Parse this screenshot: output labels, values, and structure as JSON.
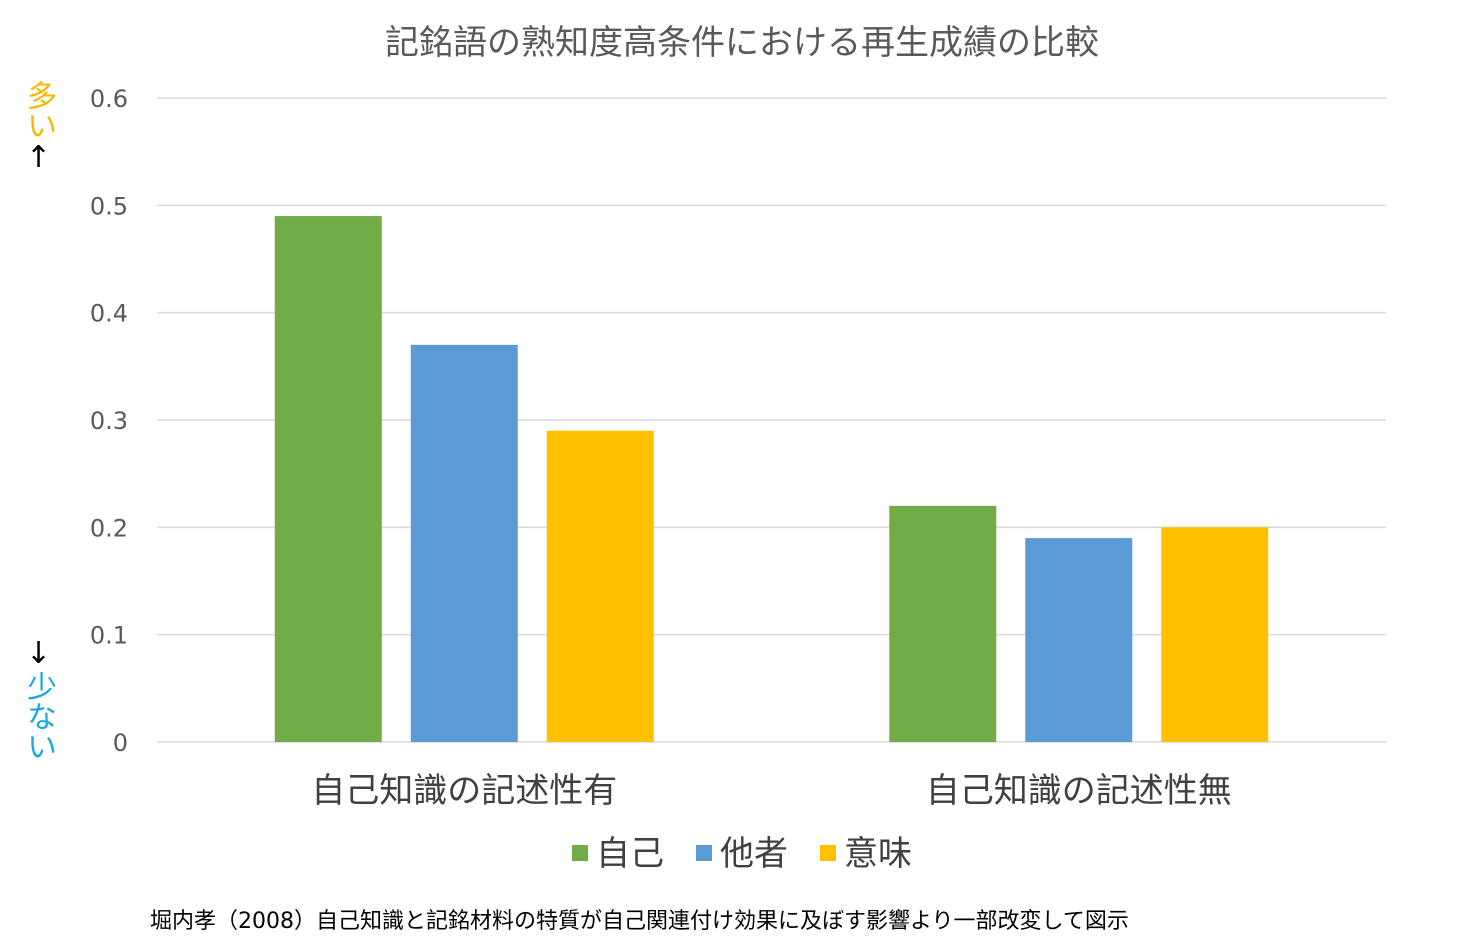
{
  "chart_data": {
    "type": "bar",
    "title": "記銘語の熟知度高条件における再生成績の比較",
    "categories": [
      "自己知識の記述性有",
      "自己知識の記述性無"
    ],
    "series": [
      {
        "name": "自己",
        "values": [
          0.49,
          0.22
        ],
        "color": "#70AD47"
      },
      {
        "name": "他者",
        "values": [
          0.37,
          0.19
        ],
        "color": "#5B9BD5"
      },
      {
        "name": "意味",
        "values": [
          0.29,
          0.2
        ],
        "color": "#FFC000"
      }
    ],
    "ylim": [
      0,
      0.6
    ],
    "yticks": [
      "0",
      "0.1",
      "0.2",
      "0.3",
      "0.4",
      "0.5",
      "0.6"
    ],
    "grid": true,
    "legend": "bottom"
  },
  "axis_annotations": {
    "more": {
      "arrow": "↑",
      "text": "多い",
      "color": "#F5B800"
    },
    "less": {
      "arrow": "↓",
      "text": "少ない",
      "color": "#1AA7E0"
    }
  },
  "footnote": "堀内孝（2008）自己知識と記銘材料の特質が自己関連付け効果に及ぼす影響より一部改変して図示"
}
